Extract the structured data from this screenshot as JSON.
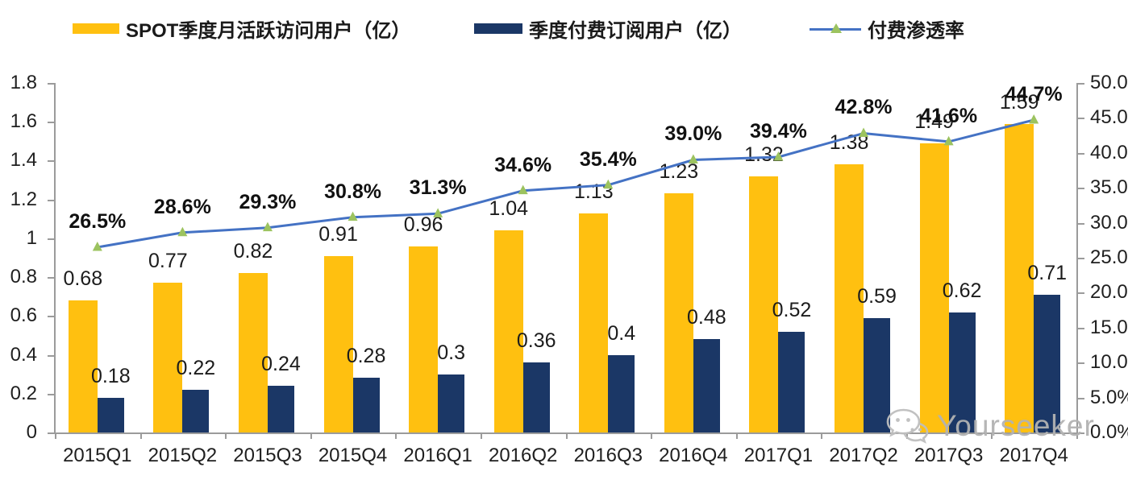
{
  "watermark": {
    "text": "Yourseeker",
    "icon": "wechat-icon",
    "color": "#b2b2b2"
  },
  "chart_data": {
    "type": "combo",
    "title": "",
    "categories": [
      "2015Q1",
      "2015Q2",
      "2015Q3",
      "2015Q4",
      "2016Q1",
      "2016Q2",
      "2016Q3",
      "2016Q4",
      "2017Q1",
      "2017Q2",
      "2017Q3",
      "2017Q4"
    ],
    "series": [
      {
        "name": "SPOT季度月活跃访问用户（亿）",
        "type": "bar",
        "axis": "left",
        "color": "#FFC010",
        "values": [
          0.68,
          0.77,
          0.82,
          0.91,
          0.96,
          1.04,
          1.13,
          1.23,
          1.32,
          1.38,
          1.49,
          1.59
        ],
        "labels": [
          "0.68",
          "0.77",
          "0.82",
          "0.91",
          "0.96",
          "1.04",
          "1.13",
          "1.23",
          "1.32",
          "1.38",
          "1.49",
          "1.59"
        ]
      },
      {
        "name": "季度付费订阅用户（亿）",
        "type": "bar",
        "axis": "left",
        "color": "#1B3766",
        "values": [
          0.18,
          0.22,
          0.24,
          0.28,
          0.3,
          0.36,
          0.4,
          0.48,
          0.52,
          0.59,
          0.62,
          0.71
        ],
        "labels": [
          "0.18",
          "0.22",
          "0.24",
          "0.28",
          "0.3",
          "0.36",
          "0.4",
          "0.48",
          "0.52",
          "0.59",
          "0.62",
          "0.71"
        ]
      },
      {
        "name": "付费渗透率",
        "type": "line",
        "axis": "right",
        "color": "#4472C4",
        "marker": "triangle",
        "marker_color": "#9CC35F",
        "values": [
          26.5,
          28.6,
          29.3,
          30.8,
          31.3,
          34.6,
          35.4,
          39.0,
          39.4,
          42.8,
          41.6,
          44.7
        ],
        "labels": [
          "26.5%",
          "28.6%",
          "29.3%",
          "30.8%",
          "31.3%",
          "34.6%",
          "35.4%",
          "39.0%",
          "39.4%",
          "42.8%",
          "41.6%",
          "44.7%"
        ]
      }
    ],
    "left_axis": {
      "min": 0,
      "max": 1.8,
      "step": 0.2,
      "ticks": [
        "1.8",
        "1.6",
        "1.4",
        "1.2",
        "1",
        "0.8",
        "0.6",
        "0.4",
        "0.2",
        "0"
      ]
    },
    "right_axis": {
      "min": 0,
      "max": 50,
      "step": 5,
      "ticks": [
        "50.0%",
        "45.0%",
        "40.0%",
        "35.0%",
        "30.0%",
        "25.0%",
        "20.0%",
        "15.0%",
        "10.0%",
        "5.0%",
        "0.0%"
      ]
    },
    "grid": false,
    "legend_position": "top"
  }
}
